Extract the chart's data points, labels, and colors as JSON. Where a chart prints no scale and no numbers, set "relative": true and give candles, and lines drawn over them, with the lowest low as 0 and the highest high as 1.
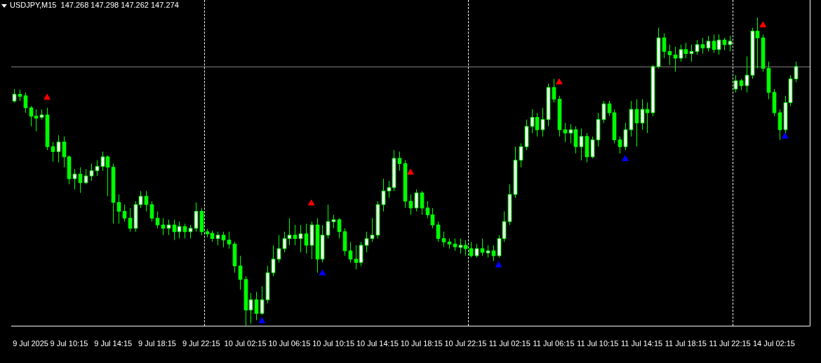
{
  "chart_data": {
    "type": "candlestick",
    "title": "USDJPY,M15  147.268 147.298 147.262 147.274",
    "relative": true,
    "color": "#00ff00",
    "legend": false,
    "tick_labels": "x",
    "marker": "triangle",
    "categories": [
      null,
      null,
      null,
      "9 Jul 2025",
      null,
      null,
      null,
      null,
      null,
      null,
      "9 Jul 10:15",
      null,
      null,
      null,
      null,
      null,
      null,
      null,
      "9 Jul 14:15",
      null,
      null,
      null,
      null,
      null,
      null,
      null,
      "9 Jul 18:15",
      null,
      null,
      null,
      null,
      null,
      null,
      null,
      "9 Jul 22:15",
      null,
      null,
      null,
      null,
      null,
      null,
      null,
      "10 Jul 02:15",
      null,
      null,
      null,
      null,
      null,
      null,
      null,
      "10 Jul 06:15",
      null,
      null,
      null,
      null,
      null,
      null,
      null,
      "10 Jul 10:15",
      null,
      null,
      null,
      null,
      null,
      null,
      null,
      "10 Jul 14:15",
      null,
      null,
      null,
      null,
      null,
      null,
      null,
      "10 Jul 18:15",
      null,
      null,
      null,
      null,
      null,
      null,
      null,
      "10 Jul 22:15",
      null,
      null,
      null,
      null,
      null,
      null,
      null,
      "11 Jul 02:15",
      null,
      null,
      null,
      null,
      null,
      null,
      null,
      "11 Jul 06:15",
      null,
      null,
      null,
      null,
      null,
      null,
      null,
      "11 Jul 10:15",
      null,
      null,
      null,
      null,
      null,
      null,
      null,
      "11 Jul 14:15",
      null,
      null,
      null,
      null,
      null,
      null,
      null,
      "11 Jul 18:15",
      null,
      null,
      null,
      null,
      null,
      null,
      null,
      "11 Jul 22:15",
      null,
      null,
      null,
      null,
      null,
      null,
      null,
      "14 Jul 02:15",
      null,
      null,
      null,
      null,
      null,
      null
    ],
    "ohlc": [
      [
        0.729,
        0.768,
        0.724,
        0.751
      ],
      [
        0.751,
        0.766,
        0.729,
        0.746
      ],
      [
        0.746,
        0.757,
        0.691,
        0.707
      ],
      [
        0.707,
        0.713,
        0.647,
        0.68
      ],
      [
        0.68,
        0.702,
        0.631,
        0.676
      ],
      [
        0.676,
        0.702,
        0.669,
        0.684
      ],
      [
        0.684,
        0.707,
        0.57,
        0.581
      ],
      [
        0.581,
        0.596,
        0.532,
        0.565
      ],
      [
        0.565,
        0.618,
        0.53,
        0.596
      ],
      [
        0.596,
        0.614,
        0.514,
        0.548
      ],
      [
        0.548,
        0.552,
        0.459,
        0.477
      ],
      [
        0.477,
        0.508,
        0.442,
        0.492
      ],
      [
        0.492,
        0.514,
        0.431,
        0.464
      ],
      [
        0.464,
        0.508,
        0.459,
        0.486
      ],
      [
        0.486,
        0.526,
        0.47,
        0.503
      ],
      [
        0.503,
        0.537,
        0.486,
        0.517
      ],
      [
        0.517,
        0.565,
        0.503,
        0.548
      ],
      [
        0.548,
        0.552,
        0.42,
        0.514
      ],
      [
        0.514,
        0.526,
        0.331,
        0.4
      ],
      [
        0.4,
        0.426,
        0.331,
        0.371
      ],
      [
        0.371,
        0.393,
        0.338,
        0.349
      ],
      [
        0.349,
        0.382,
        0.305,
        0.316
      ],
      [
        0.316,
        0.404,
        0.305,
        0.393
      ],
      [
        0.393,
        0.437,
        0.382,
        0.42
      ],
      [
        0.42,
        0.437,
        0.371,
        0.393
      ],
      [
        0.393,
        0.404,
        0.338,
        0.349
      ],
      [
        0.349,
        0.371,
        0.316,
        0.327
      ],
      [
        0.327,
        0.349,
        0.294,
        0.316
      ],
      [
        0.316,
        0.344,
        0.294,
        0.327
      ],
      [
        0.327,
        0.344,
        0.278,
        0.305
      ],
      [
        0.305,
        0.338,
        0.283,
        0.322
      ],
      [
        0.322,
        0.331,
        0.283,
        0.305
      ],
      [
        0.305,
        0.327,
        0.283,
        0.316
      ],
      [
        0.316,
        0.4,
        0.305,
        0.371
      ],
      [
        0.371,
        0.382,
        0.294,
        0.305
      ],
      [
        0.305,
        0.314,
        0.287,
        0.3
      ],
      [
        0.3,
        0.309,
        0.272,
        0.283
      ],
      [
        0.283,
        0.305,
        0.261,
        0.294
      ],
      [
        0.294,
        0.305,
        0.254,
        0.278
      ],
      [
        0.278,
        0.305,
        0.25,
        0.265
      ],
      [
        0.265,
        0.272,
        0.172,
        0.194
      ],
      [
        0.194,
        0.227,
        0.117,
        0.15
      ],
      [
        0.15,
        0.161,
        0,
        0.051
      ],
      [
        0.051,
        0.106,
        0.007,
        0.084
      ],
      [
        0.084,
        0.11,
        0.018,
        0.04
      ],
      [
        0.04,
        0.128,
        0.035,
        0.084
      ],
      [
        0.084,
        0.194,
        0.073,
        0.172
      ],
      [
        0.172,
        0.261,
        0.161,
        0.216
      ],
      [
        0.216,
        0.294,
        0.205,
        0.25
      ],
      [
        0.25,
        0.305,
        0.238,
        0.283
      ],
      [
        0.283,
        0.349,
        0.261,
        0.294
      ],
      [
        0.294,
        0.327,
        0.261,
        0.283
      ],
      [
        0.283,
        0.327,
        0.238,
        0.298
      ],
      [
        0.298,
        0.331,
        0.234,
        0.261
      ],
      [
        0.261,
        0.338,
        0.216,
        0.327
      ],
      [
        0.327,
        0.349,
        0.172,
        0.216
      ],
      [
        0.216,
        0.327,
        0.205,
        0.294
      ],
      [
        0.294,
        0.393,
        0.283,
        0.338
      ],
      [
        0.338,
        0.36,
        0.316,
        0.344
      ],
      [
        0.344,
        0.349,
        0.283,
        0.305
      ],
      [
        0.305,
        0.316,
        0.227,
        0.243
      ],
      [
        0.243,
        0.272,
        0.205,
        0.216
      ],
      [
        0.216,
        0.261,
        0.183,
        0.205
      ],
      [
        0.205,
        0.272,
        0.194,
        0.261
      ],
      [
        0.261,
        0.305,
        0.238,
        0.283
      ],
      [
        0.283,
        0.349,
        0.272,
        0.294
      ],
      [
        0.294,
        0.404,
        0.283,
        0.393
      ],
      [
        0.393,
        0.477,
        0.371,
        0.437
      ],
      [
        0.437,
        0.47,
        0.415,
        0.448
      ],
      [
        0.448,
        0.57,
        0.437,
        0.543
      ],
      [
        0.543,
        0.565,
        0.503,
        0.526
      ],
      [
        0.526,
        0.537,
        0.382,
        0.404
      ],
      [
        0.404,
        0.426,
        0.36,
        0.382
      ],
      [
        0.382,
        0.442,
        0.371,
        0.431
      ],
      [
        0.431,
        0.437,
        0.36,
        0.382
      ],
      [
        0.382,
        0.404,
        0.349,
        0.36
      ],
      [
        0.36,
        0.382,
        0.316,
        0.327
      ],
      [
        0.327,
        0.338,
        0.272,
        0.283
      ],
      [
        0.283,
        0.305,
        0.256,
        0.272
      ],
      [
        0.272,
        0.283,
        0.25,
        0.265
      ],
      [
        0.265,
        0.283,
        0.243,
        0.256
      ],
      [
        0.256,
        0.283,
        0.234,
        0.261
      ],
      [
        0.261,
        0.278,
        0.227,
        0.25
      ],
      [
        0.25,
        0.272,
        0.221,
        0.227
      ],
      [
        0.227,
        0.265,
        0.221,
        0.25
      ],
      [
        0.25,
        0.283,
        0.227,
        0.238
      ],
      [
        0.238,
        0.261,
        0.221,
        0.243
      ],
      [
        0.243,
        0.261,
        0.21,
        0.227
      ],
      [
        0.227,
        0.294,
        0.221,
        0.283
      ],
      [
        0.283,
        0.371,
        0.272,
        0.338
      ],
      [
        0.338,
        0.459,
        0.327,
        0.426
      ],
      [
        0.426,
        0.581,
        0.415,
        0.537
      ],
      [
        0.537,
        0.592,
        0.514,
        0.581
      ],
      [
        0.581,
        0.669,
        0.57,
        0.647
      ],
      [
        0.647,
        0.702,
        0.625,
        0.676
      ],
      [
        0.676,
        0.691,
        0.614,
        0.636
      ],
      [
        0.636,
        0.707,
        0.614,
        0.669
      ],
      [
        0.669,
        0.786,
        0.647,
        0.773
      ],
      [
        0.773,
        0.801,
        0.724,
        0.735
      ],
      [
        0.735,
        0.746,
        0.614,
        0.636
      ],
      [
        0.636,
        0.658,
        0.596,
        0.625
      ],
      [
        0.625,
        0.654,
        0.592,
        0.636
      ],
      [
        0.636,
        0.647,
        0.559,
        0.581
      ],
      [
        0.581,
        0.64,
        0.537,
        0.614
      ],
      [
        0.614,
        0.625,
        0.53,
        0.548
      ],
      [
        0.548,
        0.614,
        0.543,
        0.603
      ],
      [
        0.603,
        0.691,
        0.581,
        0.669
      ],
      [
        0.669,
        0.729,
        0.658,
        0.72
      ],
      [
        0.72,
        0.729,
        0.68,
        0.691
      ],
      [
        0.691,
        0.702,
        0.592,
        0.603
      ],
      [
        0.603,
        0.614,
        0.559,
        0.581
      ],
      [
        0.581,
        0.658,
        0.57,
        0.636
      ],
      [
        0.636,
        0.729,
        0.614,
        0.702
      ],
      [
        0.702,
        0.735,
        0.581,
        0.658
      ],
      [
        0.658,
        0.735,
        0.636,
        0.702
      ],
      [
        0.702,
        0.724,
        0.625,
        0.691
      ],
      [
        0.691,
        0.846,
        0.68,
        0.841
      ],
      [
        0.841,
        0.967,
        0.835,
        0.934
      ],
      [
        0.934,
        0.949,
        0.868,
        0.89
      ],
      [
        0.89,
        0.912,
        0.846,
        0.879
      ],
      [
        0.879,
        0.905,
        0.824,
        0.868
      ],
      [
        0.868,
        0.912,
        0.857,
        0.896
      ],
      [
        0.896,
        0.918,
        0.868,
        0.883
      ],
      [
        0.883,
        0.912,
        0.857,
        0.89
      ],
      [
        0.89,
        0.927,
        0.879,
        0.912
      ],
      [
        0.912,
        0.934,
        0.883,
        0.901
      ],
      [
        0.901,
        0.941,
        0.89,
        0.923
      ],
      [
        0.923,
        0.945,
        0.885,
        0.896
      ],
      [
        0.896,
        0.945,
        0.879,
        0.927
      ],
      [
        0.927,
        0.934,
        0.894,
        0.912
      ],
      [
        0.912,
        0.941,
        0.89,
        0.923
      ],
      [
        0.768,
        0.813,
        0.757,
        0.795
      ],
      [
        0.795,
        0.801,
        0.764,
        0.779
      ],
      [
        0.779,
        0.874,
        0.757,
        0.813
      ],
      [
        0.813,
        0.967,
        0.801,
        0.956
      ],
      [
        0.956,
        1,
        0.835,
        0.934
      ],
      [
        0.934,
        0.945,
        0.824,
        0.835
      ],
      [
        0.835,
        0.857,
        0.735,
        0.757
      ],
      [
        0.757,
        0.768,
        0.68,
        0.691
      ],
      [
        0.691,
        0.702,
        0.603,
        0.636
      ],
      [
        0.636,
        0.746,
        0.625,
        0.724
      ],
      [
        0.724,
        0.813,
        0.713,
        0.801
      ],
      [
        0.801,
        0.857,
        0.79,
        0.841
      ],
      null,
      null
    ],
    "series": [
      {
        "type": "scatter",
        "color": "#ff0000",
        "values": [
          null,
          null,
          null,
          null,
          null,
          null,
          0.74,
          null,
          null,
          null,
          null,
          null,
          null,
          null,
          null,
          null,
          null,
          null,
          null,
          null,
          null,
          null,
          null,
          null,
          null,
          null,
          null,
          null,
          null,
          null,
          null,
          null,
          null,
          null,
          null,
          null,
          null,
          null,
          null,
          null,
          null,
          null,
          null,
          null,
          null,
          null,
          null,
          null,
          null,
          null,
          null,
          null,
          null,
          null,
          0.397,
          null,
          null,
          null,
          null,
          null,
          null,
          null,
          null,
          null,
          null,
          null,
          null,
          null,
          null,
          null,
          null,
          null,
          0.497,
          null,
          null,
          null,
          null,
          null,
          null,
          null,
          null,
          null,
          null,
          null,
          null,
          null,
          null,
          null,
          null,
          null,
          null,
          null,
          null,
          null,
          null,
          null,
          null,
          null,
          null,
          0.79,
          null,
          null,
          null,
          null,
          null,
          null,
          null,
          null,
          null,
          null,
          null,
          null,
          null,
          null,
          null,
          null,
          null,
          null,
          null,
          null,
          null,
          null,
          null,
          null,
          null,
          null,
          null,
          null,
          null,
          null,
          null,
          null,
          null,
          null,
          null,
          null,
          0.975,
          null,
          null,
          null,
          null,
          null,
          null,
          null,
          null
        ]
      },
      {
        "type": "scatter",
        "color": "#0000ff",
        "values": [
          null,
          null,
          null,
          null,
          null,
          null,
          null,
          null,
          null,
          null,
          null,
          null,
          null,
          null,
          null,
          null,
          null,
          null,
          null,
          null,
          null,
          null,
          null,
          null,
          null,
          null,
          null,
          null,
          null,
          null,
          null,
          null,
          null,
          null,
          null,
          null,
          null,
          null,
          null,
          null,
          null,
          null,
          null,
          null,
          null,
          0.015,
          null,
          null,
          null,
          null,
          null,
          null,
          null,
          null,
          null,
          null,
          0.17,
          null,
          null,
          null,
          null,
          null,
          null,
          null,
          null,
          null,
          null,
          null,
          null,
          null,
          null,
          null,
          null,
          null,
          null,
          null,
          null,
          null,
          null,
          null,
          null,
          null,
          null,
          null,
          null,
          null,
          null,
          null,
          0.196,
          null,
          null,
          null,
          null,
          null,
          null,
          null,
          null,
          null,
          null,
          null,
          null,
          null,
          null,
          null,
          null,
          null,
          null,
          null,
          null,
          null,
          null,
          0.541,
          null,
          null,
          null,
          null,
          null,
          null,
          null,
          null,
          null,
          null,
          null,
          null,
          null,
          null,
          null,
          null,
          null,
          null,
          null,
          null,
          null,
          null,
          null,
          null,
          null,
          null,
          null,
          null,
          0.614,
          null,
          null,
          null,
          null
        ]
      }
    ],
    "ref_lines": [
      {
        "axis": "y",
        "value": 0.841,
        "color": "#808080",
        "line_style": "solid"
      }
    ]
  }
}
